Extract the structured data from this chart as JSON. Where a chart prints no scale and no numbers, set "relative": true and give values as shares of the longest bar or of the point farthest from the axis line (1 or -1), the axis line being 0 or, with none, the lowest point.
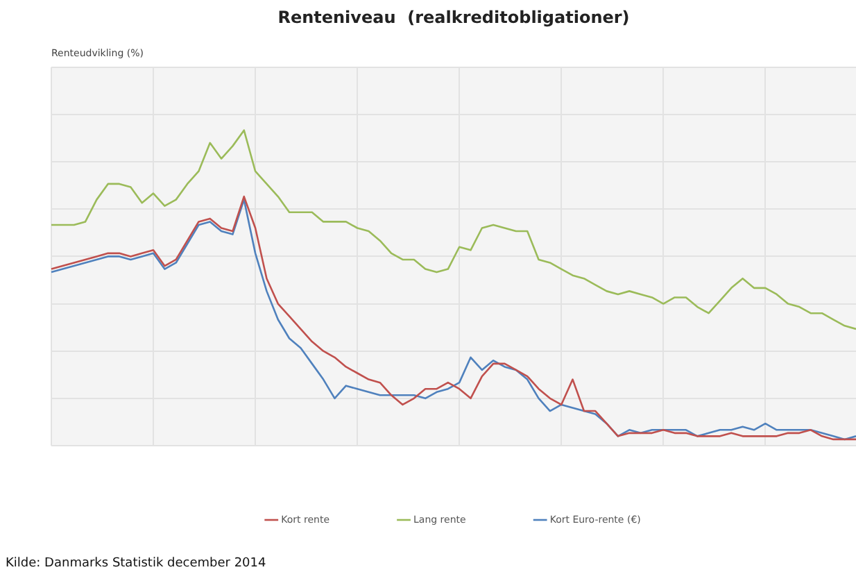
{
  "chart_data": {
    "type": "line",
    "title": "Renteniveau  (realkreditobligationer)",
    "relative": true,
    "grid": true,
    "legend": "bottom",
    "marker": "none",
    "line_style": "solid",
    "annotations": [
      "Renteudvikling (%)",
      "Kilde: Danmarks Statistik december 2014"
    ],
    "categories": [
      null,
      null,
      null,
      null,
      null,
      null,
      null,
      null,
      null,
      null,
      null,
      null,
      null,
      null,
      null,
      null,
      null,
      null,
      null,
      null,
      null,
      null,
      null,
      null,
      null,
      null,
      null,
      null,
      null,
      null,
      null,
      null,
      null,
      null,
      null,
      null,
      null,
      null,
      null,
      null,
      null,
      null,
      null,
      null,
      null,
      null,
      null,
      null,
      null,
      null,
      null,
      null,
      null,
      null,
      null,
      null,
      null,
      null,
      null,
      null,
      null,
      null,
      null,
      null,
      null,
      null,
      null,
      null,
      null,
      null,
      null,
      null
    ],
    "series": [
      {
        "name": "Kort rente",
        "color": "#c0504d",
        "values": [
          0.56,
          0.57,
          0.58,
          0.59,
          0.6,
          0.61,
          0.61,
          0.6,
          0.61,
          0.62,
          0.57,
          0.59,
          0.65,
          0.71,
          0.72,
          0.69,
          0.68,
          0.79,
          0.69,
          0.53,
          0.45,
          0.41,
          0.37,
          0.33,
          0.3,
          0.28,
          0.25,
          0.23,
          0.21,
          0.2,
          0.16,
          0.13,
          0.15,
          0.18,
          0.18,
          0.2,
          0.18,
          0.15,
          0.22,
          0.26,
          0.26,
          0.24,
          0.22,
          0.18,
          0.15,
          0.13,
          0.21,
          0.11,
          0.11,
          0.07,
          0.03,
          0.04,
          0.04,
          0.04,
          0.05,
          0.04,
          0.04,
          0.03,
          0.03,
          0.03,
          0.04,
          0.03,
          0.03,
          0.03,
          0.03,
          0.04,
          0.04,
          0.05,
          0.03,
          0.02,
          0.02,
          0.02
        ]
      },
      {
        "name": "Lang rente",
        "color": "#9bbb59",
        "values": [
          0.7,
          0.7,
          0.7,
          0.71,
          0.78,
          0.83,
          0.83,
          0.82,
          0.77,
          0.8,
          0.76,
          0.78,
          0.83,
          0.87,
          0.96,
          0.91,
          0.95,
          1.0,
          0.87,
          0.83,
          0.79,
          0.74,
          0.74,
          0.74,
          0.71,
          0.71,
          0.71,
          0.69,
          0.68,
          0.65,
          0.61,
          0.59,
          0.59,
          0.56,
          0.55,
          0.56,
          0.63,
          0.62,
          0.69,
          0.7,
          0.69,
          0.68,
          0.68,
          0.59,
          0.58,
          0.56,
          0.54,
          0.53,
          0.51,
          0.49,
          0.48,
          0.49,
          0.48,
          0.47,
          0.45,
          0.47,
          0.47,
          0.44,
          0.42,
          0.46,
          0.5,
          0.53,
          0.5,
          0.5,
          0.48,
          0.45,
          0.44,
          0.42,
          0.42,
          0.4,
          0.38,
          0.37
        ]
      },
      {
        "name": "Kort Euro-rente (€)",
        "color": "#4f81bd",
        "values": [
          0.55,
          0.56,
          0.57,
          0.58,
          0.59,
          0.6,
          0.6,
          0.59,
          0.6,
          0.61,
          0.56,
          0.58,
          0.64,
          0.7,
          0.71,
          0.68,
          0.67,
          0.78,
          0.61,
          0.49,
          0.4,
          0.34,
          0.31,
          0.26,
          0.21,
          0.15,
          0.19,
          0.18,
          0.17,
          0.16,
          0.16,
          0.16,
          0.16,
          0.15,
          0.17,
          0.18,
          0.2,
          0.28,
          0.24,
          0.27,
          0.25,
          0.24,
          0.21,
          0.15,
          0.11,
          0.13,
          0.12,
          0.11,
          0.1,
          0.07,
          0.03,
          0.05,
          0.04,
          0.05,
          0.05,
          0.05,
          0.05,
          0.03,
          0.04,
          0.05,
          0.05,
          0.06,
          0.05,
          0.07,
          0.05,
          0.05,
          0.05,
          0.05,
          0.04,
          0.03,
          0.02,
          0.03
        ]
      }
    ]
  }
}
